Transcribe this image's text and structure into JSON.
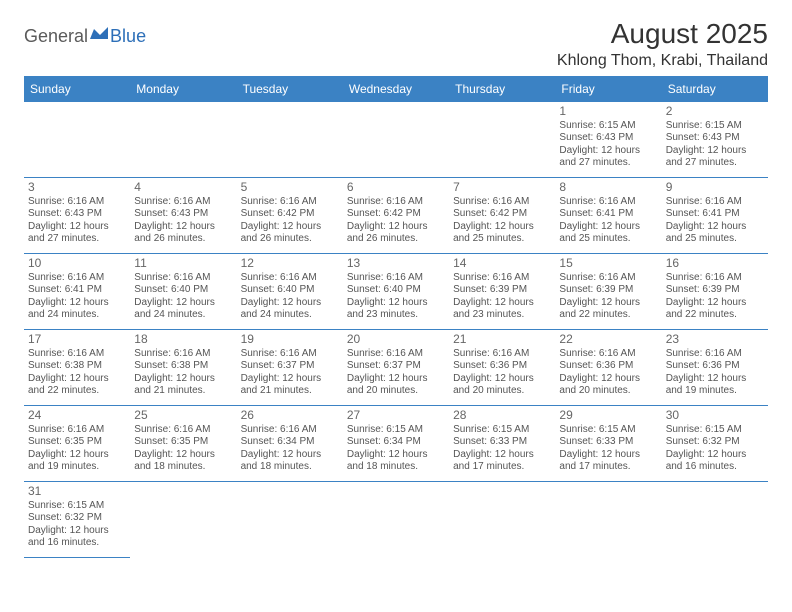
{
  "logo": {
    "part1": "General",
    "part2": "Blue"
  },
  "title": "August 2025",
  "location": "Khlong Thom, Krabi, Thailand",
  "colors": {
    "header_bg": "#3b82c4",
    "header_text": "#ffffff",
    "border": "#3b82c4",
    "daytext": "#555555",
    "title": "#333333"
  },
  "dayNames": [
    "Sunday",
    "Monday",
    "Tuesday",
    "Wednesday",
    "Thursday",
    "Friday",
    "Saturday"
  ],
  "weeks": [
    [
      null,
      null,
      null,
      null,
      null,
      {
        "n": "1",
        "sr": "6:15 AM",
        "ss": "6:43 PM",
        "dl": "12 hours and 27 minutes."
      },
      {
        "n": "2",
        "sr": "6:15 AM",
        "ss": "6:43 PM",
        "dl": "12 hours and 27 minutes."
      }
    ],
    [
      {
        "n": "3",
        "sr": "6:16 AM",
        "ss": "6:43 PM",
        "dl": "12 hours and 27 minutes."
      },
      {
        "n": "4",
        "sr": "6:16 AM",
        "ss": "6:43 PM",
        "dl": "12 hours and 26 minutes."
      },
      {
        "n": "5",
        "sr": "6:16 AM",
        "ss": "6:42 PM",
        "dl": "12 hours and 26 minutes."
      },
      {
        "n": "6",
        "sr": "6:16 AM",
        "ss": "6:42 PM",
        "dl": "12 hours and 26 minutes."
      },
      {
        "n": "7",
        "sr": "6:16 AM",
        "ss": "6:42 PM",
        "dl": "12 hours and 25 minutes."
      },
      {
        "n": "8",
        "sr": "6:16 AM",
        "ss": "6:41 PM",
        "dl": "12 hours and 25 minutes."
      },
      {
        "n": "9",
        "sr": "6:16 AM",
        "ss": "6:41 PM",
        "dl": "12 hours and 25 minutes."
      }
    ],
    [
      {
        "n": "10",
        "sr": "6:16 AM",
        "ss": "6:41 PM",
        "dl": "12 hours and 24 minutes."
      },
      {
        "n": "11",
        "sr": "6:16 AM",
        "ss": "6:40 PM",
        "dl": "12 hours and 24 minutes."
      },
      {
        "n": "12",
        "sr": "6:16 AM",
        "ss": "6:40 PM",
        "dl": "12 hours and 24 minutes."
      },
      {
        "n": "13",
        "sr": "6:16 AM",
        "ss": "6:40 PM",
        "dl": "12 hours and 23 minutes."
      },
      {
        "n": "14",
        "sr": "6:16 AM",
        "ss": "6:39 PM",
        "dl": "12 hours and 23 minutes."
      },
      {
        "n": "15",
        "sr": "6:16 AM",
        "ss": "6:39 PM",
        "dl": "12 hours and 22 minutes."
      },
      {
        "n": "16",
        "sr": "6:16 AM",
        "ss": "6:39 PM",
        "dl": "12 hours and 22 minutes."
      }
    ],
    [
      {
        "n": "17",
        "sr": "6:16 AM",
        "ss": "6:38 PM",
        "dl": "12 hours and 22 minutes."
      },
      {
        "n": "18",
        "sr": "6:16 AM",
        "ss": "6:38 PM",
        "dl": "12 hours and 21 minutes."
      },
      {
        "n": "19",
        "sr": "6:16 AM",
        "ss": "6:37 PM",
        "dl": "12 hours and 21 minutes."
      },
      {
        "n": "20",
        "sr": "6:16 AM",
        "ss": "6:37 PM",
        "dl": "12 hours and 20 minutes."
      },
      {
        "n": "21",
        "sr": "6:16 AM",
        "ss": "6:36 PM",
        "dl": "12 hours and 20 minutes."
      },
      {
        "n": "22",
        "sr": "6:16 AM",
        "ss": "6:36 PM",
        "dl": "12 hours and 20 minutes."
      },
      {
        "n": "23",
        "sr": "6:16 AM",
        "ss": "6:36 PM",
        "dl": "12 hours and 19 minutes."
      }
    ],
    [
      {
        "n": "24",
        "sr": "6:16 AM",
        "ss": "6:35 PM",
        "dl": "12 hours and 19 minutes."
      },
      {
        "n": "25",
        "sr": "6:16 AM",
        "ss": "6:35 PM",
        "dl": "12 hours and 18 minutes."
      },
      {
        "n": "26",
        "sr": "6:16 AM",
        "ss": "6:34 PM",
        "dl": "12 hours and 18 minutes."
      },
      {
        "n": "27",
        "sr": "6:15 AM",
        "ss": "6:34 PM",
        "dl": "12 hours and 18 minutes."
      },
      {
        "n": "28",
        "sr": "6:15 AM",
        "ss": "6:33 PM",
        "dl": "12 hours and 17 minutes."
      },
      {
        "n": "29",
        "sr": "6:15 AM",
        "ss": "6:33 PM",
        "dl": "12 hours and 17 minutes."
      },
      {
        "n": "30",
        "sr": "6:15 AM",
        "ss": "6:32 PM",
        "dl": "12 hours and 16 minutes."
      }
    ],
    [
      {
        "n": "31",
        "sr": "6:15 AM",
        "ss": "6:32 PM",
        "dl": "12 hours and 16 minutes."
      },
      null,
      null,
      null,
      null,
      null,
      null
    ]
  ],
  "labels": {
    "sunrise": "Sunrise:",
    "sunset": "Sunset:",
    "daylight": "Daylight:"
  }
}
